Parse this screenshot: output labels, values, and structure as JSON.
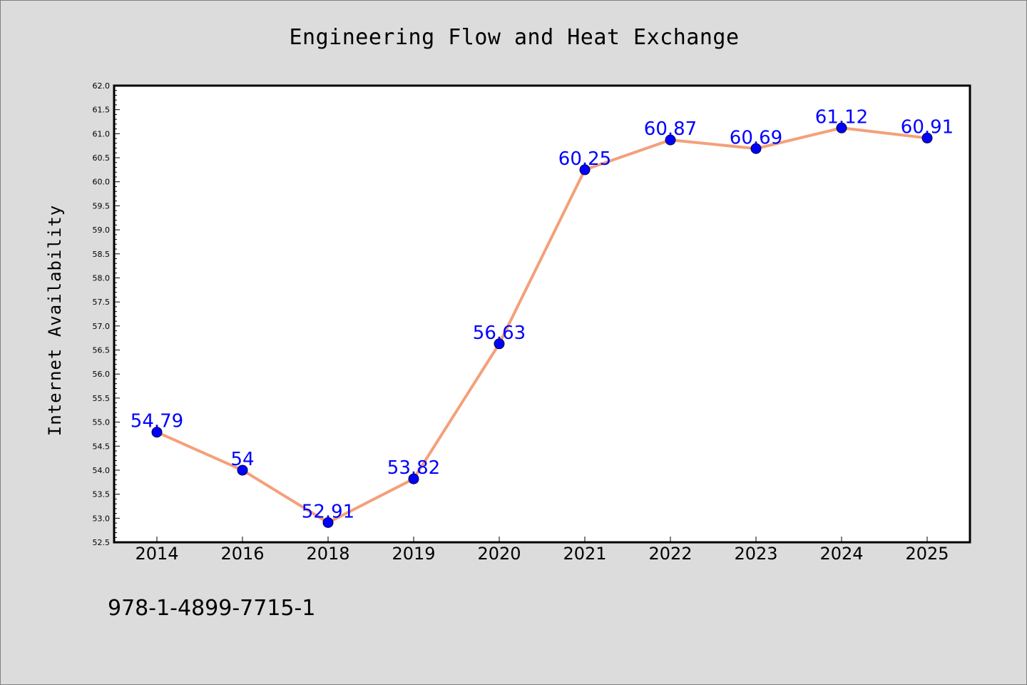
{
  "footnote": "978-1-4899-7715-1",
  "chart_data": {
    "type": "line",
    "title": "Engineering Flow and Heat Exchange",
    "xlabel": "",
    "ylabel": "Internet Availability",
    "categories": [
      "2014",
      "2016",
      "2018",
      "2019",
      "2020",
      "2021",
      "2022",
      "2023",
      "2024",
      "2025"
    ],
    "series": [
      {
        "values": [
          54.79,
          54,
          52.91,
          53.82,
          56.63,
          60.25,
          60.87,
          60.69,
          61.12,
          60.91
        ],
        "labels": [
          "54.79",
          "54",
          "52.91",
          "53.82",
          "56.63",
          "60.25",
          "60.87",
          "60.69",
          "61.12",
          "60.91"
        ],
        "line_color": "#f4a07a",
        "marker_color": "#0000ff"
      }
    ],
    "ylim": [
      52.5,
      62.0
    ],
    "yticks": [
      "52.5",
      "53.0",
      "53.5",
      "54.0",
      "54.5",
      "55.0",
      "55.5",
      "56.0",
      "56.5",
      "57.0",
      "57.5",
      "58.0",
      "58.5",
      "59.0",
      "59.5",
      "60.0",
      "60.5",
      "61.0",
      "61.5",
      "62.0"
    ],
    "grid": false,
    "legend": "none"
  }
}
